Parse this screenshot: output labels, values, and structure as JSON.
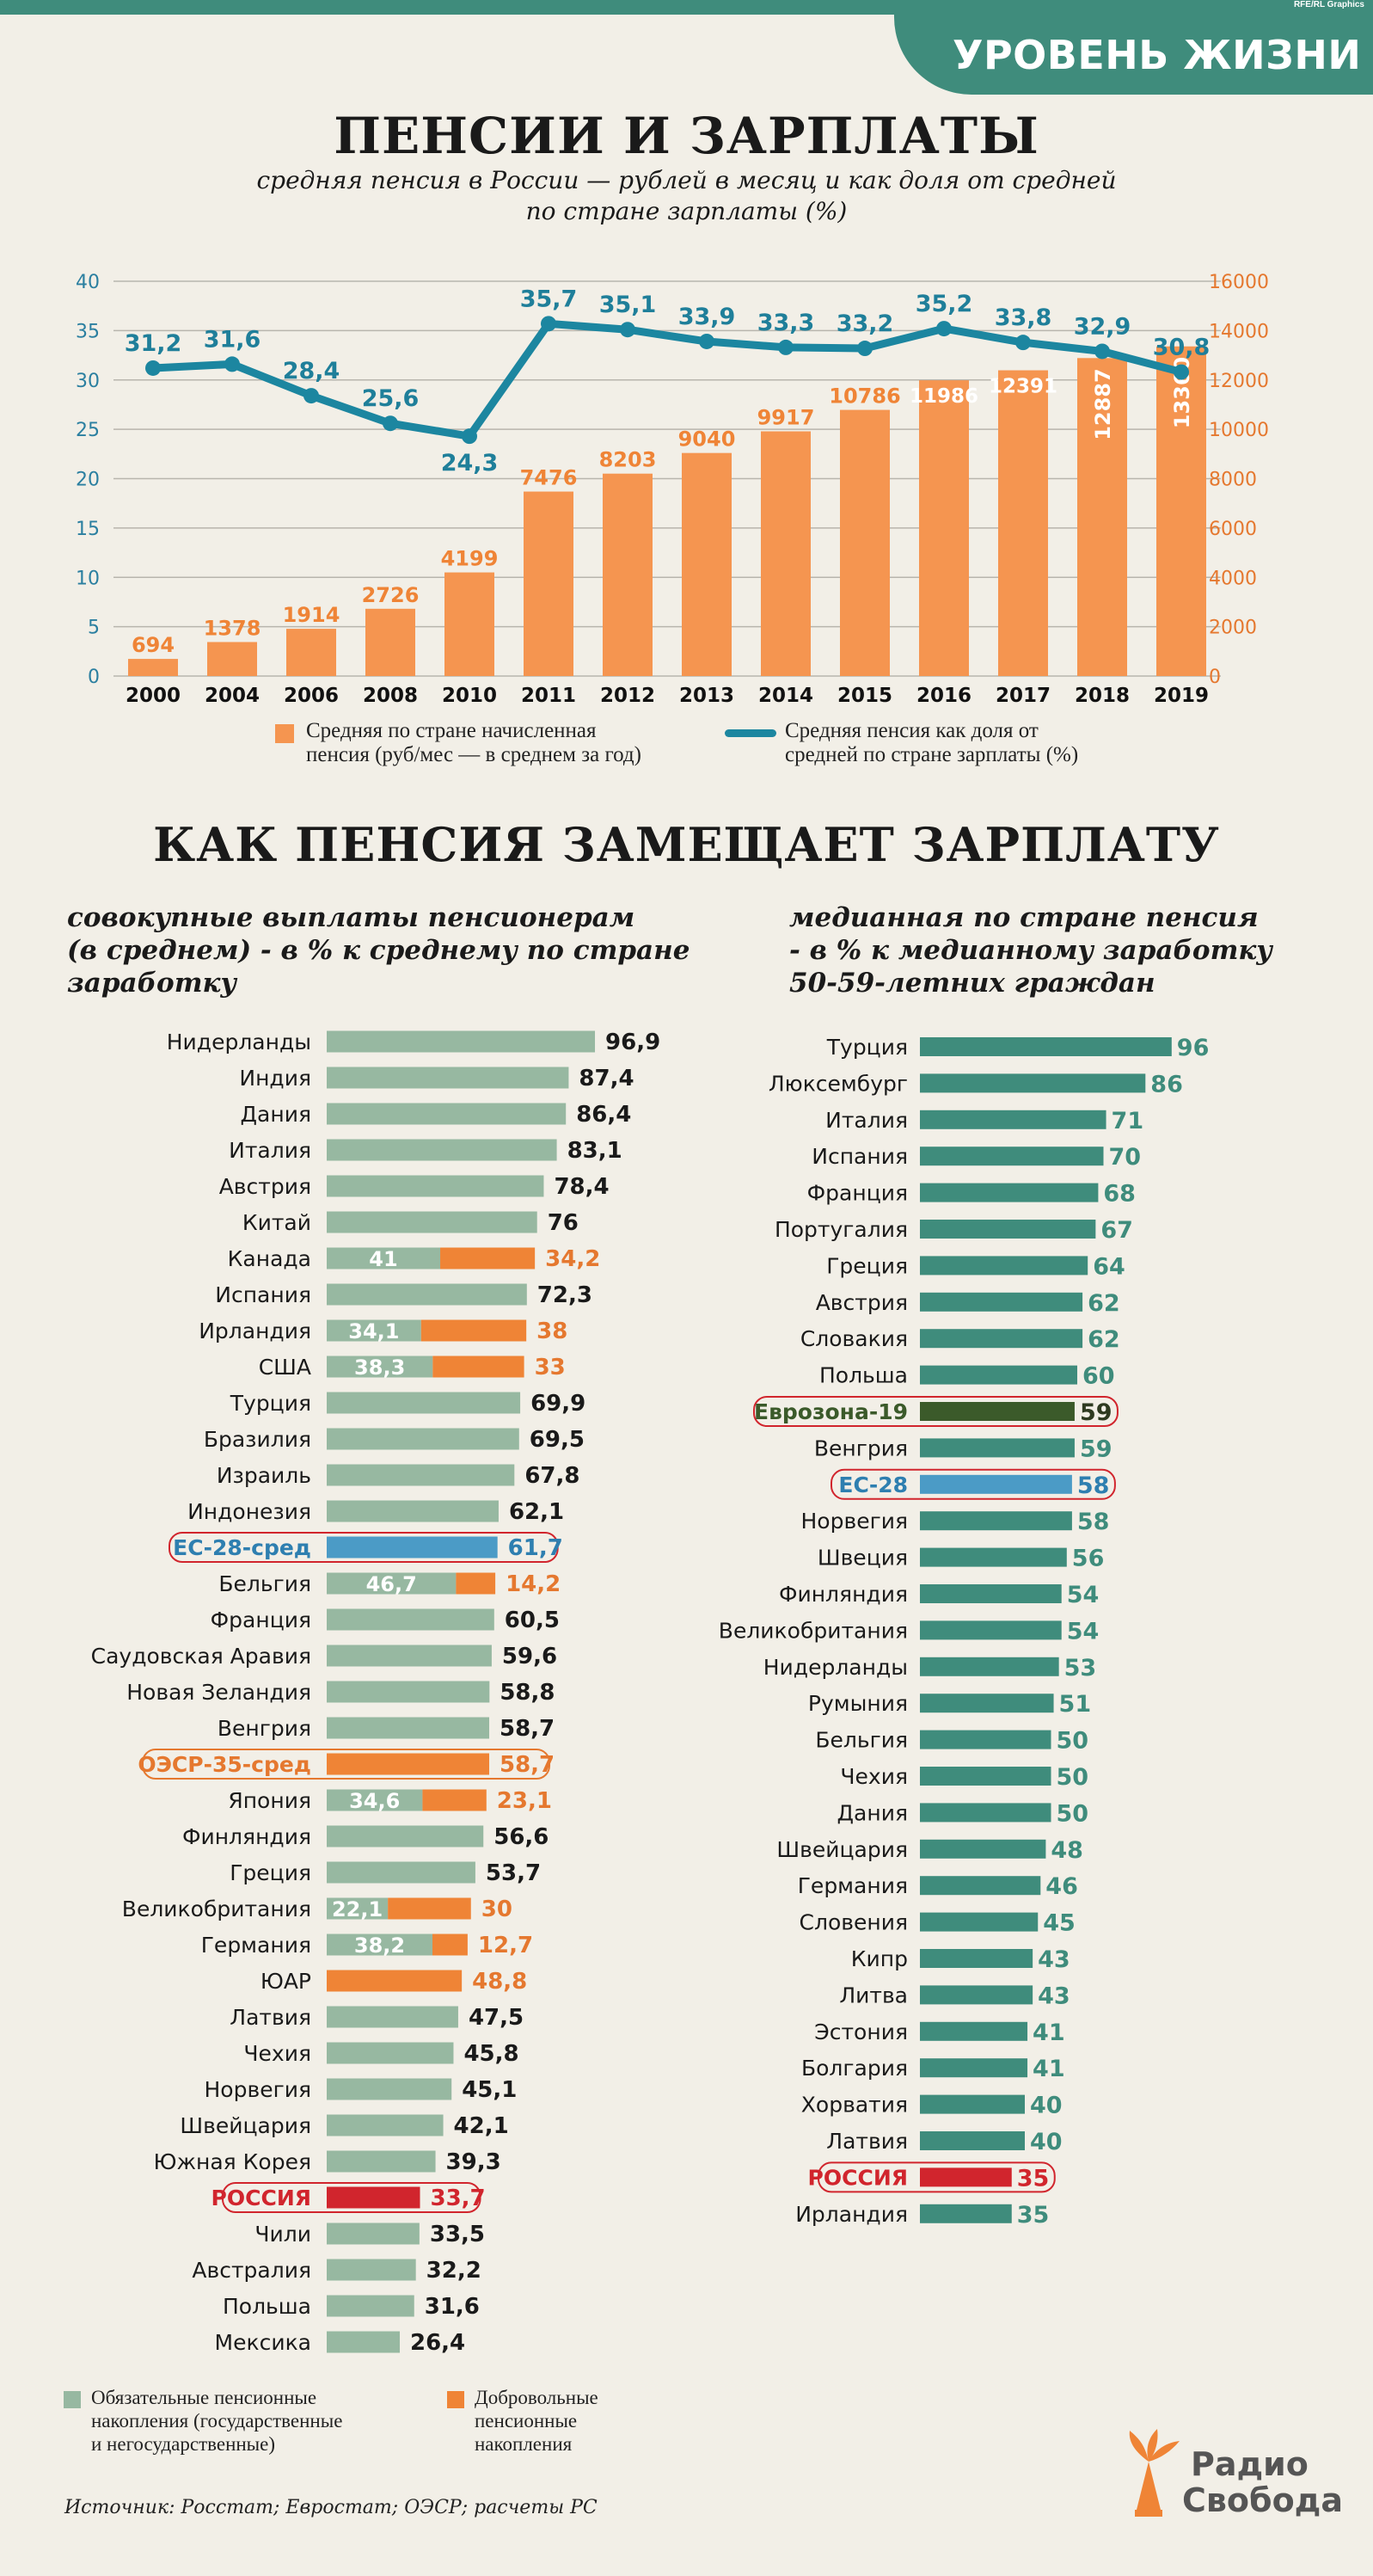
{
  "header": {
    "credit": "RFE/RL Graphics",
    "tag": "УРОВЕНЬ ЖИЗНИ"
  },
  "title1": "ПЕНСИИ И ЗАРПЛАТЫ",
  "subtitle1a": "средняя пенсия в России — рублей в месяц и как доля от средней",
  "subtitle1b": "по стране зарплаты (%)",
  "legend1": {
    "bars": [
      "Средняя по стране начисленная",
      "пенсия (руб/мес — в среднем за год)"
    ],
    "line": [
      "Средняя пенсия как доля от",
      "средней по стране зарплаты (%)"
    ]
  },
  "title2": "КАК ПЕНСИЯ ЗАМЕЩАЕТ ЗАРПЛАТУ",
  "left_title": [
    "совокупные выплаты пенсионерам",
    "(в среднем) - в % к среднему по стране",
    "заработку"
  ],
  "right_title": [
    "медианная по стране пенсия",
    "- в % к медианному заработку",
    "50-59-летних граждан"
  ],
  "legend2": {
    "mandatory": [
      "Обязательные пенсионные",
      "накопления (государственные",
      "и негосударственные)"
    ],
    "voluntary": [
      "Добровольные",
      "пенсионные",
      "накопления"
    ]
  },
  "source": "Источник: Росстат; Евростат; ОЭСР; расчеты РС",
  "logo": {
    "line1": "Радио",
    "line2": "Свобода"
  },
  "colors": {
    "green": "#97b8a1",
    "orange": "#ef8436",
    "teal": "#3f8c7c",
    "blue": "#4b9bc6",
    "red": "#d1252d",
    "dark_green": "#3b5a2a",
    "bar_orange": "#f59550",
    "line": "#1c86a0"
  },
  "chart_data": [
    {
      "type": "bar+line",
      "categories": [
        "2000",
        "2004",
        "2006",
        "2008",
        "2010",
        "2011",
        "2012",
        "2013",
        "2014",
        "2015",
        "2016",
        "2017",
        "2018",
        "2019"
      ],
      "series": [
        {
          "name": "Средняя по стране начисленная пенсия (руб/мес — в среднем за год)",
          "axis": "right",
          "values": [
            694,
            1378,
            1914,
            2726,
            4199,
            7476,
            8203,
            9040,
            9917,
            10786,
            11986,
            12391,
            12887,
            13360
          ]
        },
        {
          "name": "Средняя пенсия как доля от средней по стране зарплаты (%)",
          "axis": "left",
          "values": [
            31.2,
            31.6,
            28.4,
            25.6,
            24.3,
            35.7,
            35.1,
            33.9,
            33.3,
            33.2,
            35.2,
            33.8,
            32.9,
            30.8
          ],
          "labels": [
            "31,2",
            "31,6",
            "28,4",
            "25,6",
            "24,3",
            "35,7",
            "35,1",
            "33,9",
            "33,3",
            "33,2",
            "35,2",
            "33,8",
            "32,9",
            "30,8"
          ]
        }
      ],
      "y_left_ticks": [
        "0",
        "5",
        "10",
        "15",
        "20",
        "25",
        "30",
        "35",
        "40"
      ],
      "ylim_left": [
        0,
        40
      ],
      "y_right_ticks": [
        "0",
        "2000",
        "4000",
        "6000",
        "8000",
        "10000",
        "12000",
        "14000",
        "16000"
      ],
      "ylim_right": [
        0,
        16000
      ],
      "grid": true
    },
    {
      "type": "bar",
      "orientation": "horizontal",
      "stacked": true,
      "xlim": [
        0,
        100
      ],
      "rows": [
        {
          "name": "Нидерланды",
          "m": 96.9,
          "v": 0,
          "label": "96,9"
        },
        {
          "name": "Индия",
          "m": 87.4,
          "v": 0,
          "label": "87,4"
        },
        {
          "name": "Дания",
          "m": 86.4,
          "v": 0,
          "label": "86,4"
        },
        {
          "name": "Италия",
          "m": 83.1,
          "v": 0,
          "label": "83,1"
        },
        {
          "name": "Австрия",
          "m": 78.4,
          "v": 0,
          "label": "78,4"
        },
        {
          "name": "Китай",
          "m": 76,
          "v": 0,
          "label": "76"
        },
        {
          "name": "Канада",
          "m": 41,
          "v": 34.2,
          "mlabel": "41",
          "label": "34,2"
        },
        {
          "name": "Испания",
          "m": 72.3,
          "v": 0,
          "label": "72,3"
        },
        {
          "name": "Ирландия",
          "m": 34.1,
          "v": 38,
          "mlabel": "34,1",
          "label": "38"
        },
        {
          "name": "США",
          "m": 38.3,
          "v": 33,
          "mlabel": "38,3",
          "label": "33"
        },
        {
          "name": "Турция",
          "m": 69.9,
          "v": 0,
          "label": "69,9"
        },
        {
          "name": "Бразилия",
          "m": 69.5,
          "v": 0,
          "label": "69,5"
        },
        {
          "name": "Израиль",
          "m": 67.8,
          "v": 0,
          "label": "67,8"
        },
        {
          "name": "Индонезия",
          "m": 62.1,
          "v": 0,
          "label": "62,1"
        },
        {
          "name": "ЕС-28-сред",
          "m": 61.7,
          "v": 0,
          "label": "61,7",
          "hl": "blue"
        },
        {
          "name": "Бельгия",
          "m": 46.7,
          "v": 14.2,
          "mlabel": "46,7",
          "label": "14,2"
        },
        {
          "name": "Франция",
          "m": 60.5,
          "v": 0,
          "label": "60,5"
        },
        {
          "name": "Саудовская Аравия",
          "m": 59.6,
          "v": 0,
          "label": "59,6"
        },
        {
          "name": "Новая Зеландия",
          "m": 58.8,
          "v": 0,
          "label": "58,8"
        },
        {
          "name": "Венгрия",
          "m": 58.7,
          "v": 0,
          "label": "58,7"
        },
        {
          "name": "ОЭСР-35-сред",
          "m": 58.7,
          "v": 0,
          "label": "58,7",
          "hl": "orange"
        },
        {
          "name": "Япония",
          "m": 34.6,
          "v": 23.1,
          "mlabel": "34,6",
          "label": "23,1"
        },
        {
          "name": "Финляндия",
          "m": 56.6,
          "v": 0,
          "label": "56,6"
        },
        {
          "name": "Греция",
          "m": 53.7,
          "v": 0,
          "label": "53,7"
        },
        {
          "name": "Великобритания",
          "m": 22.1,
          "v": 30,
          "mlabel": "22,1",
          "label": "30"
        },
        {
          "name": "Германия",
          "m": 38.2,
          "v": 12.7,
          "mlabel": "38,2",
          "label": "12,7"
        },
        {
          "name": "ЮАР",
          "m": 0,
          "v": 48.8,
          "label": "48,8"
        },
        {
          "name": "Латвия",
          "m": 47.5,
          "v": 0,
          "label": "47,5"
        },
        {
          "name": "Чехия",
          "m": 45.8,
          "v": 0,
          "label": "45,8"
        },
        {
          "name": "Норвегия",
          "m": 45.1,
          "v": 0,
          "label": "45,1"
        },
        {
          "name": "Швейцария",
          "m": 42.1,
          "v": 0,
          "label": "42,1"
        },
        {
          "name": "Южная Корея",
          "m": 39.3,
          "v": 0,
          "label": "39,3"
        },
        {
          "name": "РОССИЯ",
          "m": 33.7,
          "v": 0,
          "label": "33,7",
          "hl": "red"
        },
        {
          "name": "Чили",
          "m": 33.5,
          "v": 0,
          "label": "33,5"
        },
        {
          "name": "Австралия",
          "m": 32.2,
          "v": 0,
          "label": "32,2"
        },
        {
          "name": "Польша",
          "m": 31.6,
          "v": 0,
          "label": "31,6"
        },
        {
          "name": "Мексика",
          "m": 26.4,
          "v": 0,
          "label": "26,4"
        }
      ]
    },
    {
      "type": "bar",
      "orientation": "horizontal",
      "xlim": [
        0,
        100
      ],
      "rows": [
        {
          "name": "Турция",
          "value": 96,
          "label": "96"
        },
        {
          "name": "Люксембург",
          "value": 86,
          "label": "86"
        },
        {
          "name": "Италия",
          "value": 71,
          "label": "71"
        },
        {
          "name": "Испания",
          "value": 70,
          "label": "70"
        },
        {
          "name": "Франция",
          "value": 68,
          "label": "68"
        },
        {
          "name": "Португалия",
          "value": 67,
          "label": "67"
        },
        {
          "name": "Греция",
          "value": 64,
          "label": "64"
        },
        {
          "name": "Австрия",
          "value": 62,
          "label": "62"
        },
        {
          "name": "Словакия",
          "value": 62,
          "label": "62"
        },
        {
          "name": "Польша",
          "value": 60,
          "label": "60"
        },
        {
          "name": "Еврозона-19",
          "value": 59,
          "label": "59",
          "hl": "dark_green"
        },
        {
          "name": "Венгрия",
          "value": 59,
          "label": "59"
        },
        {
          "name": "ЕС-28",
          "value": 58,
          "label": "58",
          "hl": "blue"
        },
        {
          "name": "Норвегия",
          "value": 58,
          "label": "58"
        },
        {
          "name": "Швеция",
          "value": 56,
          "label": "56"
        },
        {
          "name": "Финляндия",
          "value": 54,
          "label": "54"
        },
        {
          "name": "Великобритания",
          "value": 54,
          "label": "54"
        },
        {
          "name": "Нидерланды",
          "value": 53,
          "label": "53"
        },
        {
          "name": "Румыния",
          "value": 51,
          "label": "51"
        },
        {
          "name": "Бельгия",
          "value": 50,
          "label": "50"
        },
        {
          "name": "Чехия",
          "value": 50,
          "label": "50"
        },
        {
          "name": "Дания",
          "value": 50,
          "label": "50"
        },
        {
          "name": "Швейцария",
          "value": 48,
          "label": "48"
        },
        {
          "name": "Германия",
          "value": 46,
          "label": "46"
        },
        {
          "name": "Словения",
          "value": 45,
          "label": "45"
        },
        {
          "name": "Кипр",
          "value": 43,
          "label": "43"
        },
        {
          "name": "Литва",
          "value": 43,
          "label": "43"
        },
        {
          "name": "Эстония",
          "value": 41,
          "label": "41"
        },
        {
          "name": "Болгария",
          "value": 41,
          "label": "41"
        },
        {
          "name": "Хорватия",
          "value": 40,
          "label": "40"
        },
        {
          "name": "Латвия",
          "value": 40,
          "label": "40"
        },
        {
          "name": "РОССИЯ",
          "value": 35,
          "label": "35",
          "hl": "red"
        },
        {
          "name": "Ирландия",
          "value": 35,
          "label": "35"
        }
      ]
    }
  ]
}
